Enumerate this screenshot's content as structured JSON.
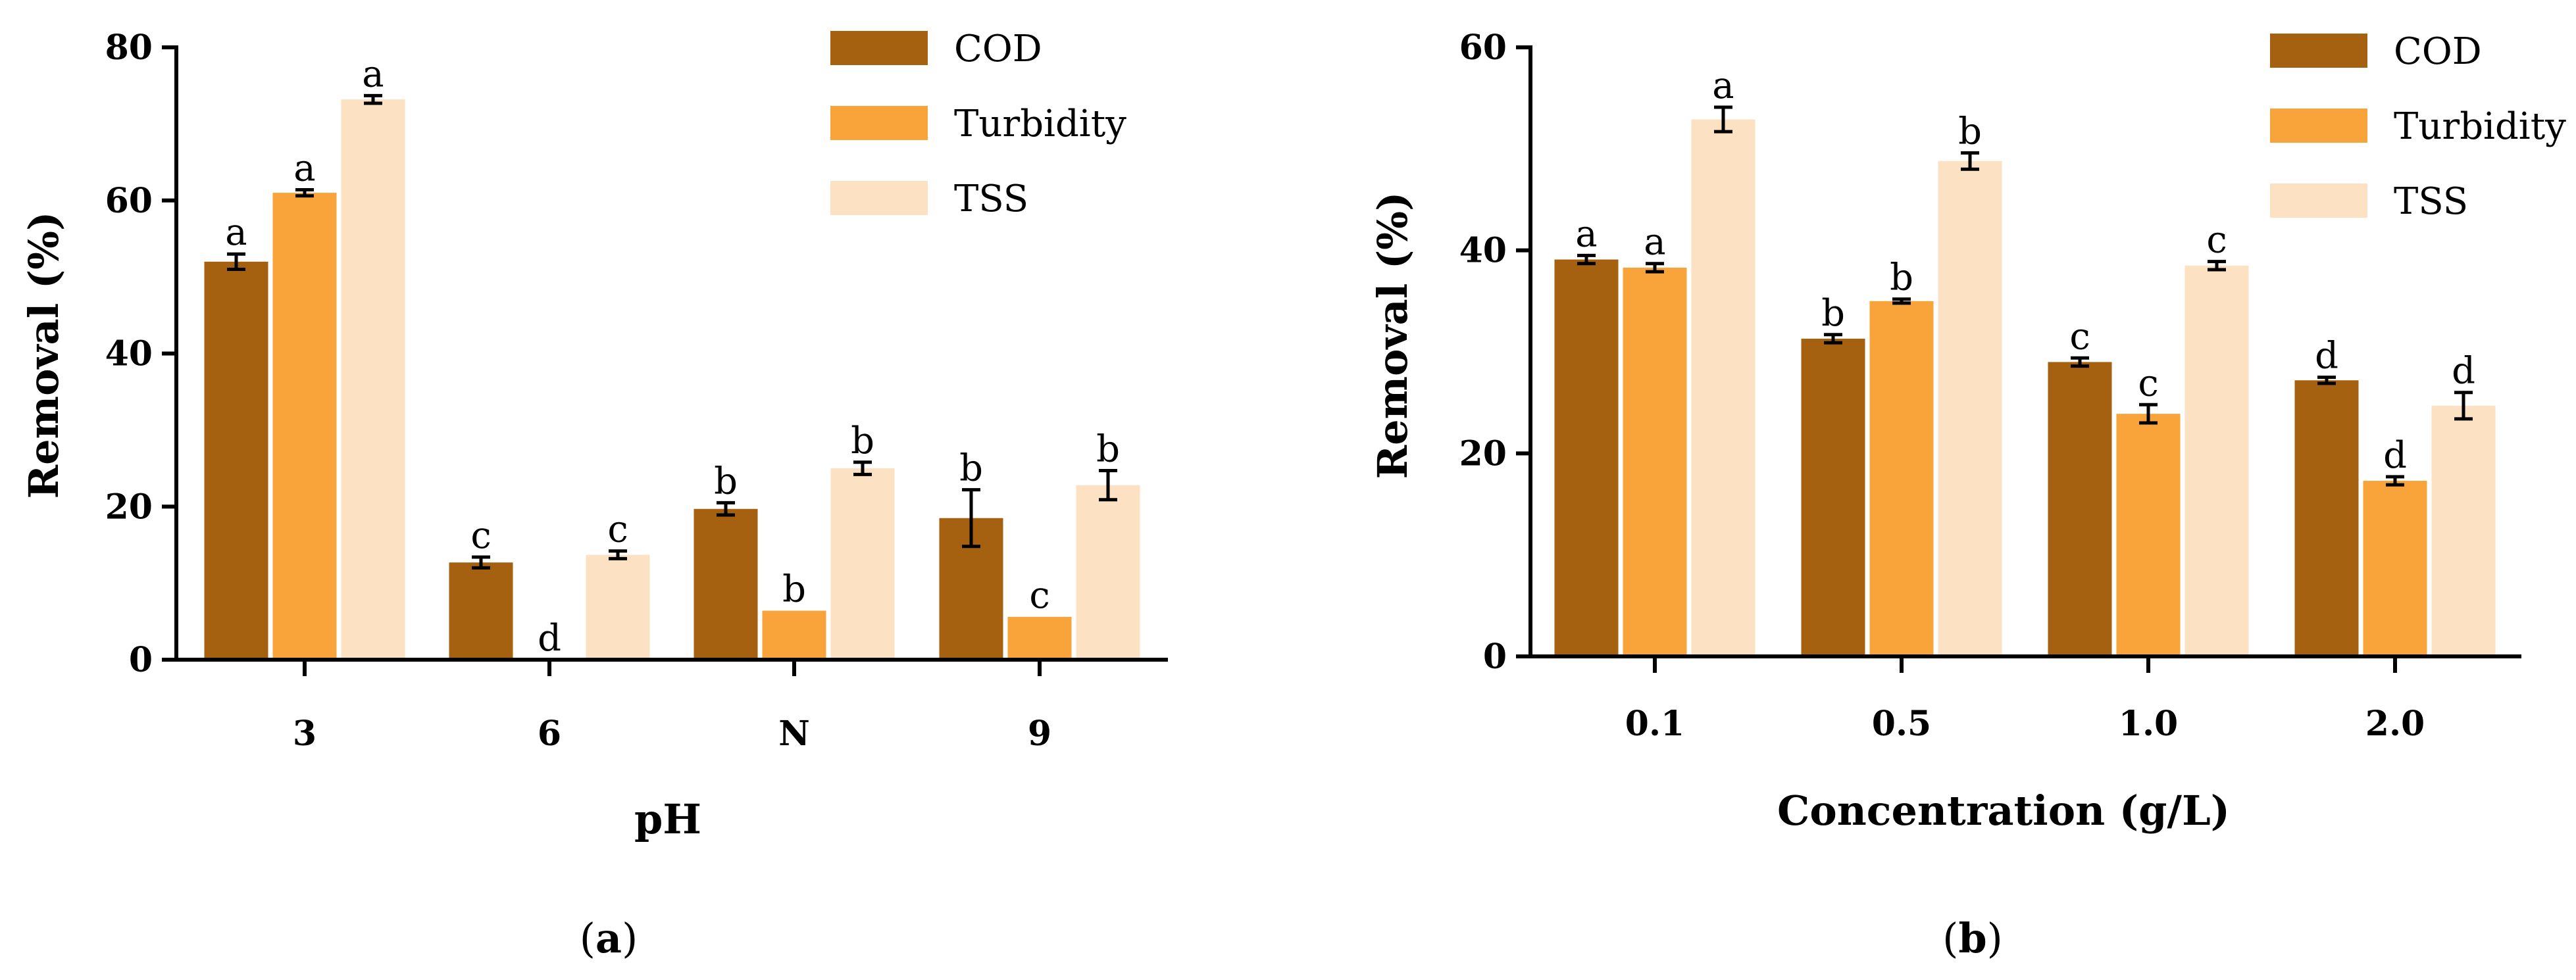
{
  "colors": {
    "COD": "#A5610F",
    "Turbidity": "#F9A43A",
    "TSS": "#FCE1C2",
    "axis": "#000000"
  },
  "chart_data": [
    {
      "type": "bar",
      "panel_label": "a",
      "title": "",
      "xlabel": "pH",
      "ylabel": "Removal (%)",
      "ylim": [
        0,
        80
      ],
      "yticks": [
        0,
        20,
        40,
        60,
        80
      ],
      "categories": [
        "3",
        "6",
        "N",
        "9"
      ],
      "legend": [
        "COD",
        "Turbidity",
        "TSS"
      ],
      "series": [
        {
          "name": "COD",
          "values": [
            52.0,
            12.7,
            19.7,
            18.5
          ],
          "errors": [
            1.0,
            0.7,
            0.8,
            3.7
          ],
          "letters": [
            "a",
            "c",
            "b",
            "b"
          ]
        },
        {
          "name": "Turbidity",
          "values": [
            61.0,
            0.0,
            6.4,
            5.6
          ],
          "errors": [
            0.4,
            0.0,
            0.0,
            0.0
          ],
          "letters": [
            "a",
            "d",
            "b",
            "c"
          ]
        },
        {
          "name": "TSS",
          "values": [
            73.2,
            13.7,
            25.0,
            22.8
          ],
          "errors": [
            0.5,
            0.5,
            0.8,
            1.9
          ],
          "letters": [
            "a",
            "c",
            "b",
            "b"
          ]
        }
      ]
    },
    {
      "type": "bar",
      "panel_label": "b",
      "title": "",
      "xlabel": "Concentration (g/L)",
      "ylabel": "Removal (%)",
      "ylim": [
        0,
        60
      ],
      "yticks": [
        0,
        20,
        40,
        60
      ],
      "categories": [
        "0.1",
        "0.5",
        "1.0",
        "2.0"
      ],
      "legend": [
        "COD",
        "Turbidity",
        "TSS"
      ],
      "series": [
        {
          "name": "COD",
          "values": [
            39.1,
            31.3,
            29.0,
            27.2
          ],
          "errors": [
            0.4,
            0.4,
            0.4,
            0.3
          ],
          "letters": [
            "a",
            "b",
            "c",
            "d"
          ]
        },
        {
          "name": "Turbidity",
          "values": [
            38.3,
            35.0,
            23.9,
            17.3
          ],
          "errors": [
            0.4,
            0.2,
            0.9,
            0.4
          ],
          "letters": [
            "a",
            "b",
            "c",
            "d"
          ]
        },
        {
          "name": "TSS",
          "values": [
            52.9,
            48.8,
            38.5,
            24.7
          ],
          "errors": [
            1.2,
            0.8,
            0.4,
            1.3
          ],
          "letters": [
            "a",
            "b",
            "c",
            "d"
          ]
        }
      ]
    }
  ]
}
